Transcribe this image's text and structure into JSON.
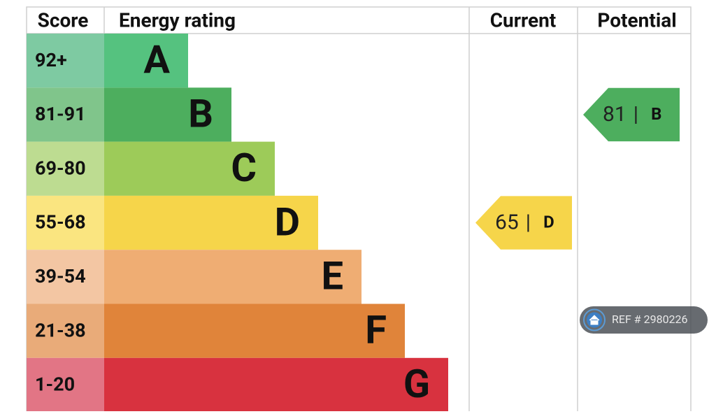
{
  "header": {
    "score": "Score",
    "energy_rating": "Energy rating",
    "current": "Current",
    "potential": "Potential"
  },
  "bands": [
    {
      "range": "92+",
      "letter": "A",
      "color": "#55c27f",
      "score_color": "#7ecaa2"
    },
    {
      "range": "81-91",
      "letter": "B",
      "color": "#4dae5e",
      "score_color": "#80c58b"
    },
    {
      "range": "69-80",
      "letter": "C",
      "color": "#9dcb59",
      "score_color": "#bddc91"
    },
    {
      "range": "55-68",
      "letter": "D",
      "color": "#f6d54a",
      "score_color": "#fae580"
    },
    {
      "range": "39-54",
      "letter": "E",
      "color": "#efad73",
      "score_color": "#f3c6a3"
    },
    {
      "range": "21-38",
      "letter": "F",
      "color": "#e0843a",
      "score_color": "#e9ab79"
    },
    {
      "range": "1-20",
      "letter": "G",
      "color": "#d8323f",
      "score_color": "#e27585"
    }
  ],
  "current": {
    "value": 65,
    "separator": "|",
    "rating": "D"
  },
  "potential": {
    "value": 81,
    "separator": "|",
    "rating": "B"
  },
  "ref": "REF # 2980226"
}
